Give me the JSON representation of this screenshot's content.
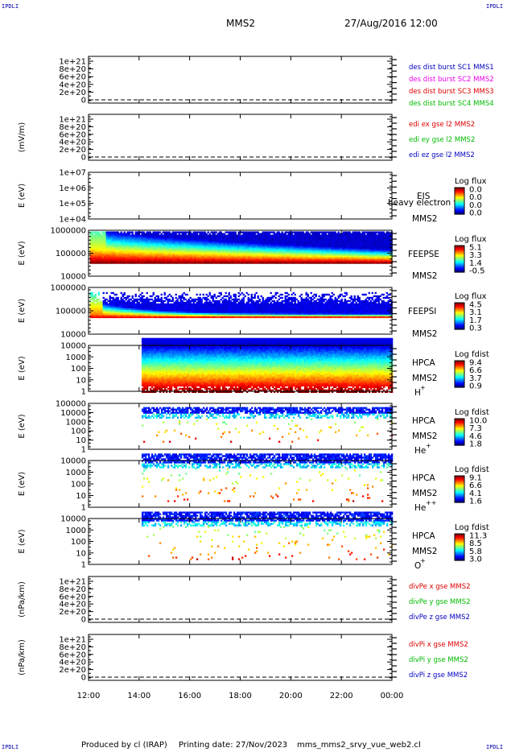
{
  "corner_label": "IPDLI",
  "header": {
    "spacecraft": "MMS2",
    "datetime": "27/Aug/2016 12:00"
  },
  "footer": {
    "produced_by": "Produced by cl (IRAP)",
    "printing_date": "Printing date: 27/Nov/2023",
    "script": "mms_mms2_srvy_vue_web2.cl"
  },
  "x_axis": {
    "ticks": [
      "12:00",
      "14:00",
      "16:00",
      "18:00",
      "20:00",
      "22:00",
      "00:00"
    ],
    "start_hour": 12,
    "end_hour": 24
  },
  "chart_data": [
    {
      "type": "line",
      "ylabel": "",
      "ticks": [
        "1e+21",
        "8e+20",
        "6e+20",
        "4e+20",
        "2e+20",
        "0"
      ],
      "yrange": [
        0,
        1e+21
      ],
      "dashed_zero": true,
      "legend": [
        {
          "text": "des dist burst SC1 MMS1",
          "color": "#0000c0"
        },
        {
          "text": "des dist burst SC2 MMS2",
          "color": "#ee00ee"
        },
        {
          "text": "des dist burst SC3 MMS3",
          "color": "#dd0000"
        },
        {
          "text": "des dist burst SC4 MMS4",
          "color": "#00bb00"
        }
      ],
      "series": []
    },
    {
      "type": "line",
      "ylabel": "(mV/m)",
      "ticks": [
        "1e+21",
        "8e+20",
        "6e+20",
        "4e+20",
        "2e+20",
        "0"
      ],
      "yrange": [
        0,
        1e+21
      ],
      "dashed_zero": true,
      "legend": [
        {
          "text": "edi ex gse l2 MMS2",
          "color": "#dd0000"
        },
        {
          "text": "edi ey gse l2 MMS2",
          "color": "#00bb00"
        },
        {
          "text": "edi ez gse l2 MMS2",
          "color": "#0000c0"
        }
      ],
      "series": []
    },
    {
      "type": "heatmap",
      "ylabel": "E (eV)",
      "ticks": [
        "1e+07",
        "1e+06",
        "1e+05",
        "1e+04"
      ],
      "yscale": "log",
      "right_labels": [
        "EIS",
        "MMS2"
      ],
      "overlay_text": "heavy electron to",
      "colorbar": {
        "title": "Log flux",
        "ticks": [
          "0.0",
          "0.0",
          "0.0",
          "0.0"
        ]
      },
      "spectrogram": null
    },
    {
      "type": "heatmap",
      "ylabel": "E (eV)",
      "ticks": [
        "1000000",
        "100000",
        "10000"
      ],
      "yscale": "log",
      "right_labels": [
        "FEEPSE",
        "MMS2"
      ],
      "colorbar": {
        "title": "Log flux",
        "ticks": [
          "5.1",
          "3.3",
          "1.4",
          "-0.5"
        ]
      },
      "spectrogram": {
        "pattern": "feepse",
        "start_hour": 12.05,
        "end_hour": 24,
        "e_min_log": 4.6,
        "e_max_log": 5.95
      }
    },
    {
      "type": "heatmap",
      "ylabel": "E (eV)",
      "ticks": [
        "1000000",
        "100000",
        "10000"
      ],
      "yscale": "log",
      "right_labels": [
        "FEEPSI",
        "MMS2"
      ],
      "colorbar": {
        "title": "Log flux",
        "ticks": [
          "4.5",
          "3.1",
          "1.7",
          "0.3"
        ]
      },
      "spectrogram": {
        "pattern": "feepsi",
        "start_hour": 12.05,
        "end_hour": 24,
        "e_min_log": 4.75,
        "e_max_log": 5.8
      }
    },
    {
      "type": "heatmap",
      "ylabel": "E (eV)",
      "ticks": [
        "10000",
        "1000",
        "100",
        "10",
        "1"
      ],
      "yscale": "log",
      "right_labels": [
        "HPCA",
        "MMS2",
        "H+"
      ],
      "species": {
        "base": "H",
        "sup": "+"
      },
      "colorbar": {
        "title": "Log fdist",
        "ticks": [
          "9.4",
          "6.6",
          "3.7",
          "0.9"
        ]
      },
      "spectrogram": {
        "pattern": "hpca_h",
        "start_hour": 14.1,
        "end_hour": 24,
        "e_min_log": 0,
        "e_max_log": 4.65
      }
    },
    {
      "type": "heatmap",
      "ylabel": "E (eV)",
      "ticks": [
        "100000",
        "10000",
        "1000",
        "100",
        "10",
        "1"
      ],
      "yscale": "log",
      "right_labels": [
        "HPCA",
        "MMS2",
        "He+"
      ],
      "species": {
        "base": "He",
        "sup": "+"
      },
      "colorbar": {
        "title": "Log fdist",
        "ticks": [
          "10.0",
          "7.3",
          "4.6",
          "1.8"
        ]
      },
      "spectrogram": {
        "pattern": "hpca_he1",
        "start_hour": 14.1,
        "end_hour": 24,
        "e_min_log": 0.8,
        "e_max_log": 4.6
      }
    },
    {
      "type": "heatmap",
      "ylabel": "E (eV)",
      "ticks": [
        "10000",
        "1000",
        "100",
        "10",
        "1"
      ],
      "yscale": "log",
      "right_labels": [
        "HPCA",
        "MMS2",
        "He++"
      ],
      "species": {
        "base": "He",
        "sup": "++"
      },
      "colorbar": {
        "title": "Log fdist",
        "ticks": [
          "9.1",
          "6.6",
          "4.1",
          "1.6"
        ]
      },
      "spectrogram": {
        "pattern": "hpca_he2",
        "start_hour": 14.1,
        "end_hour": 24,
        "e_min_log": 0.5,
        "e_max_log": 4.6
      }
    },
    {
      "type": "heatmap",
      "ylabel": "E (eV)",
      "ticks": [
        "10000",
        "1000",
        "100",
        "10",
        "1"
      ],
      "yscale": "log",
      "right_labels": [
        "HPCA",
        "MMS2",
        "O+"
      ],
      "species": {
        "base": "O",
        "sup": "+"
      },
      "colorbar": {
        "title": "Log fdist",
        "ticks": [
          "11.3",
          "8.5",
          "5.8",
          "3.0"
        ]
      },
      "spectrogram": {
        "pattern": "hpca_o",
        "start_hour": 14.1,
        "end_hour": 24,
        "e_min_log": 0.5,
        "e_max_log": 4.6
      }
    },
    {
      "type": "line",
      "ylabel": "(nPa/km)",
      "ticks": [
        "1e+21",
        "8e+20",
        "6e+20",
        "4e+20",
        "2e+20",
        "0"
      ],
      "yrange": [
        0,
        1e+21
      ],
      "dashed_zero": true,
      "legend": [
        {
          "text": "divPe x gse MMS2",
          "color": "#dd0000"
        },
        {
          "text": "divPe y gse MMS2",
          "color": "#00bb00"
        },
        {
          "text": "divPe z gse MMS2",
          "color": "#0000c0"
        }
      ],
      "series": []
    },
    {
      "type": "line",
      "ylabel": "(nPa/km)",
      "ticks": [
        "1e+21",
        "8e+20",
        "6e+20",
        "4e+20",
        "2e+20",
        "0"
      ],
      "yrange": [
        0,
        1e+21
      ],
      "dashed_zero": true,
      "legend": [
        {
          "text": "divPi x gse MMS2",
          "color": "#dd0000"
        },
        {
          "text": "divPi y gse MMS2",
          "color": "#00bb00"
        },
        {
          "text": "divPi z gse MMS2",
          "color": "#0000c0"
        }
      ],
      "series": []
    }
  ]
}
